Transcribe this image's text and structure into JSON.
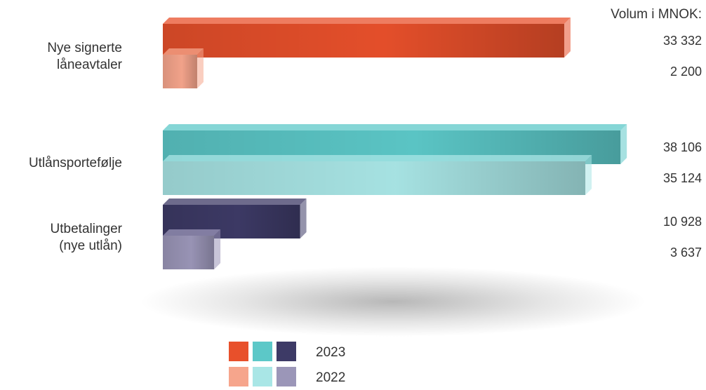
{
  "chart_data": {
    "type": "bar",
    "unit_label": "Volum i MNOK:",
    "categories": [
      {
        "label_lines": [
          "Nye signerte",
          "låneavtaler"
        ]
      },
      {
        "label_lines": [
          "Utlånsportefølje"
        ]
      },
      {
        "label_lines": [
          "Utbetalinger",
          "(nye utlån)"
        ]
      }
    ],
    "series": [
      {
        "name": "2023",
        "values": [
          33332,
          38106,
          10928
        ],
        "labels": [
          "33 332",
          "38 106",
          "10 928"
        ],
        "colors": [
          "#e8502b",
          "#5cc8c8",
          "#3d3a66"
        ]
      },
      {
        "name": "2022",
        "values": [
          2200,
          35124,
          3637
        ],
        "labels": [
          "2 200",
          "35 124",
          "3 637"
        ],
        "colors": [
          "#f6a58c",
          "#a9e6e6",
          "#9b96b8"
        ]
      }
    ],
    "legend": {
      "position": "bottom-center",
      "entries": [
        {
          "label": "2023",
          "colors": [
            "#e8502b",
            "#5cc8c8",
            "#3d3a66"
          ]
        },
        {
          "label": "2022",
          "colors": [
            "#f6a58c",
            "#a9e6e6",
            "#9b96b8"
          ]
        }
      ]
    }
  }
}
